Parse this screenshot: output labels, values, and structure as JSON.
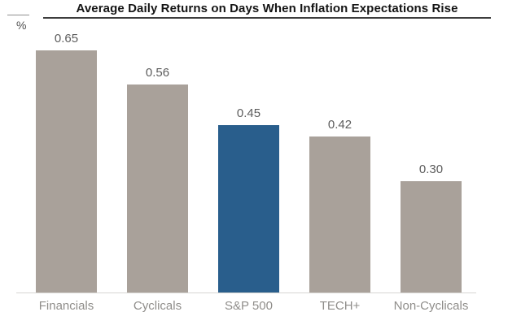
{
  "header": {
    "title": "Average Daily Returns on Days When Inflation Expectations Rise",
    "y_axis_unit": "%"
  },
  "chart_data": {
    "type": "bar",
    "title": "Average Daily Returns on Days When Inflation Expectations Rise",
    "categories": [
      "Financials",
      "Cyclicals",
      "S&P 500",
      "TECH+",
      "Non-Cyclicals"
    ],
    "values": [
      0.65,
      0.56,
      0.45,
      0.42,
      0.3
    ],
    "value_labels": [
      "0.65",
      "0.56",
      "0.45",
      "0.42",
      "0.30"
    ],
    "xlabel": "",
    "ylabel": "%",
    "ylim": [
      0,
      0.72
    ],
    "grid": false,
    "legend": "none",
    "highlight_index": 2,
    "colors": {
      "bar_default": "#a9a19a",
      "bar_highlight": "#295e8c",
      "value_label": "#5c5c5c",
      "axis_label": "#8f8d8a",
      "axis_line": "#d7d5d2",
      "title": "#141414"
    }
  }
}
